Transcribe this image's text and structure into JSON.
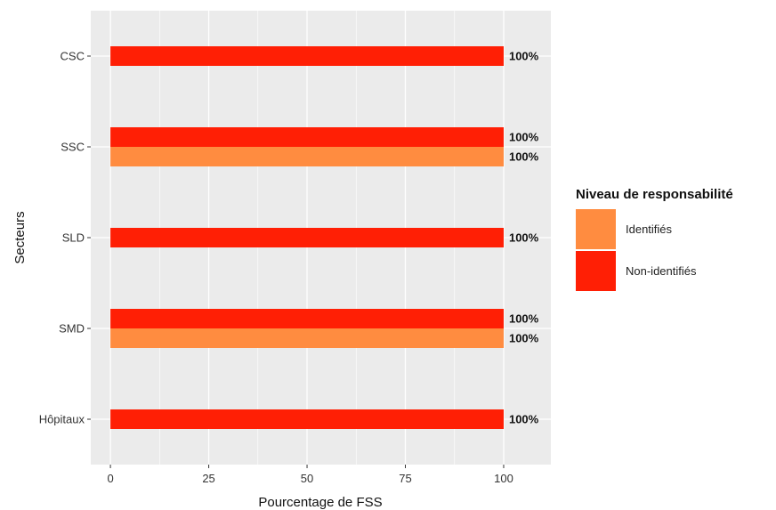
{
  "chart_data": {
    "type": "bar",
    "orientation": "horizontal",
    "categories": [
      "CSC",
      "SSC",
      "SLD",
      "SMD",
      "Hôpitaux"
    ],
    "series": [
      {
        "name": "Non-identifiés",
        "color": "#FF1F05",
        "values": [
          100,
          100,
          100,
          100,
          100
        ]
      },
      {
        "name": "Identifiés",
        "color": "#FF8C40",
        "values": [
          null,
          100,
          null,
          100,
          null
        ]
      }
    ],
    "data_labels": [
      {
        "category": "CSC",
        "series": "Non-identifiés",
        "text": "100%"
      },
      {
        "category": "SSC",
        "series": "Non-identifiés",
        "text": "100%"
      },
      {
        "category": "SSC",
        "series": "Identifiés",
        "text": "100%"
      },
      {
        "category": "SLD",
        "series": "Non-identifiés",
        "text": "100%"
      },
      {
        "category": "SMD",
        "series": "Non-identifiés",
        "text": "100%"
      },
      {
        "category": "SMD",
        "series": "Identifiés",
        "text": "100%"
      },
      {
        "category": "Hôpitaux",
        "series": "Non-identifiés",
        "text": "100%"
      }
    ],
    "xlabel": "Pourcentage de FSS",
    "ylabel": "Secteurs",
    "xlim": [
      -5,
      112
    ],
    "x_ticks": [
      0,
      25,
      50,
      75,
      100
    ],
    "grid": true,
    "legend": {
      "title": "Niveau de responsabilité",
      "position": "right",
      "items": [
        {
          "label": "Identifiés",
          "color": "#FF8C40"
        },
        {
          "label": "Non-identifiés",
          "color": "#FF1F05"
        }
      ]
    },
    "panel_color": "#EBEBEB",
    "grid_color": "#FFFFFF"
  }
}
